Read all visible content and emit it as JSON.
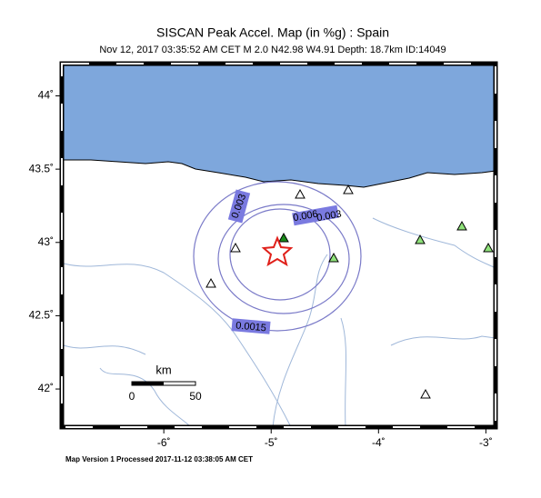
{
  "map": {
    "title": "SISCAN Peak Accel. Map (in %g) : Spain",
    "subtitle": "Nov 12, 2017 03:35:52 AM CET   M 2.0    N42.98 W4.91   Depth: 18.7km   ID:14049",
    "xlim": [
      -6.95,
      -2.91
    ],
    "ylim": [
      41.74,
      44.22
    ],
    "xticks": [
      {
        "value": -6,
        "label": "-6˚"
      },
      {
        "value": -5,
        "label": "-5˚"
      },
      {
        "value": -4,
        "label": "-4˚"
      },
      {
        "value": -3,
        "label": "-3˚"
      }
    ],
    "yticks": [
      {
        "value": 42,
        "label": "42˚"
      },
      {
        "value": 42.5,
        "label": "42.5˚"
      },
      {
        "value": 43,
        "label": "43˚"
      },
      {
        "value": 43.5,
        "label": "43.5˚"
      },
      {
        "value": 44,
        "label": "44˚"
      }
    ],
    "contour_labels": [
      "0.003",
      "0.006",
      "0.003",
      "0.0015"
    ],
    "scale": {
      "unit": "km",
      "start": "0",
      "end": "50"
    },
    "footer": "Map Version 1 Processed 2017-11-12 03:38:05 AM CET"
  }
}
